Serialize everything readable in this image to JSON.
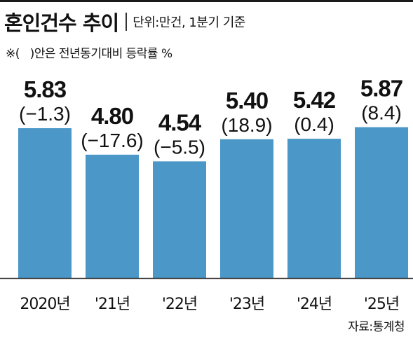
{
  "header": {
    "title": "혼인건수 추이",
    "unit": "단위:만건, 1분기 기준",
    "note": "※(   )안은 전년동기대비 등락률 %"
  },
  "source": "자료:통계청",
  "colors": {
    "bar": "#4a97c8",
    "baseline": "#333333"
  },
  "chart_data": {
    "type": "bar",
    "categories": [
      "2020년",
      "'21년",
      "'22년",
      "'23년",
      "'24년",
      "'25년"
    ],
    "values": [
      5.83,
      4.8,
      4.54,
      5.4,
      5.42,
      5.87
    ],
    "value_labels": [
      "5.83",
      "4.80",
      "4.54",
      "5.40",
      "5.42",
      "5.87"
    ],
    "change_labels": [
      "(−1.3)",
      "(−17.6)",
      "(−5.5)",
      "(18.9)",
      "(0.4)",
      "(8.4)"
    ],
    "title": "혼인건수 추이",
    "unit": "단위:만건, 1분기 기준",
    "grid": false,
    "legend": "none"
  }
}
